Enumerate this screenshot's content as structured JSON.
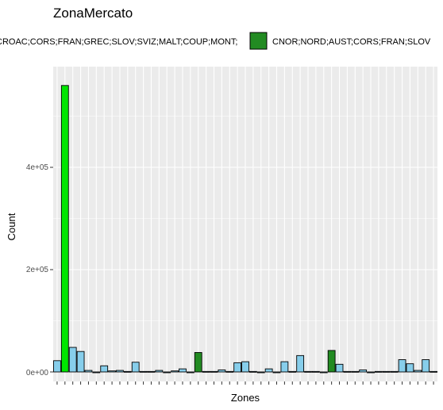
{
  "chart_data": {
    "type": "bar",
    "title": "ZonaMercato",
    "xlabel": "Zones",
    "ylabel": "Count",
    "ylim": [
      0,
      580000
    ],
    "y_ticks": [
      {
        "value": 0,
        "label": "0e+00"
      },
      {
        "value": 200000,
        "label": "2e+05"
      },
      {
        "value": 400000,
        "label": "4e+05"
      }
    ],
    "x_tick_labels_visible": false,
    "grid": true,
    "legend_position": "top",
    "legend": [
      {
        "label": "CROAC;CORS;FRAN;GREC;SLOV;SVIZ;MALT;COUP;MONT;",
        "color": "#00e600"
      },
      {
        "label": "CNOR;NORD;AUST;CORS;FRAN;SLOV",
        "color": "#228b22"
      }
    ],
    "colors": {
      "default": "#87ceeb",
      "highlight_1": "#00e600",
      "highlight_2": "#228b22",
      "outline": "#000000",
      "panel": "#ebebeb",
      "grid": "#ffffff"
    },
    "values": [
      22000,
      560000,
      48000,
      40000,
      3000,
      0,
      12000,
      2000,
      3000,
      1000,
      19000,
      1000,
      1000,
      3000,
      0,
      2000,
      6000,
      0,
      38000,
      1000,
      1000,
      4000,
      1000,
      18000,
      20000,
      1000,
      0,
      6000,
      0,
      20000,
      1000,
      32000,
      1000,
      1000,
      0,
      42000,
      15000,
      1000,
      1000,
      4000,
      0,
      1000,
      1000,
      1000,
      24000,
      16000,
      3000,
      24000,
      1000
    ],
    "bar_colors": [
      "default",
      "highlight_1",
      "default",
      "default",
      "default",
      "default",
      "default",
      "default",
      "default",
      "default",
      "default",
      "default",
      "default",
      "default",
      "default",
      "default",
      "default",
      "default",
      "highlight_2",
      "default",
      "default",
      "default",
      "default",
      "default",
      "default",
      "default",
      "default",
      "default",
      "default",
      "default",
      "default",
      "default",
      "default",
      "default",
      "default",
      "highlight_2",
      "default",
      "default",
      "default",
      "default",
      "default",
      "default",
      "default",
      "default",
      "default",
      "default",
      "default",
      "default",
      "default"
    ]
  }
}
